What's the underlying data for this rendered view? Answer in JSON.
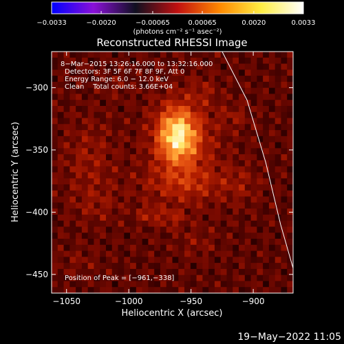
{
  "chart_data": {
    "type": "heatmap",
    "title": "Reconstructed RHESSI Image",
    "xlabel": "Heliocentric X (arcsec)",
    "ylabel": "Heliocentric Y (arcsec)",
    "xlim": [
      -1062,
      -868
    ],
    "ylim": [
      -465,
      -271
    ],
    "xticks": [
      -1050,
      -1000,
      -950,
      -900
    ],
    "yticks": [
      -300,
      -350,
      -400,
      -450
    ],
    "colorbar": {
      "label": "(photons cm⁻² s⁻¹ asec⁻²)",
      "range": [
        -0.0033,
        0.0033
      ],
      "tick_values": [
        -0.0033,
        -0.002,
        -0.00065,
        0.00065,
        0.002,
        0.0033
      ],
      "tick_labels": [
        "−0.0033",
        "−0.0020",
        "−0.00065",
        "0.00065",
        "0.0020",
        "0.0033"
      ],
      "colors": [
        "#0000ff",
        "#8a10d8",
        "#101020",
        "#c01010",
        "#ff8800",
        "#ffee44",
        "#ffffff"
      ]
    },
    "annotations": [
      "8−Mar−2015 13:26:16.000 to 13:32:16.000",
      "Detectors: 3F 5F 6F 7F 8F 9F, Att 0",
      "Energy Range: 6.0 − 12.0 keV",
      "Clean    Total counts: 3.66E+04"
    ],
    "peak_label": "Position of Peak = [−961,−338]",
    "peak": {
      "x": -961,
      "y": -338
    },
    "limb_points": [
      [
        -925,
        -271
      ],
      [
        -905,
        -310
      ],
      [
        -890,
        -360
      ],
      [
        -878,
        -410
      ],
      [
        -868,
        -445
      ]
    ],
    "image_colormap": [
      "#000000",
      "#3a0000",
      "#7a0a00",
      "#b82000",
      "#e45010",
      "#ff9a30",
      "#ffe870",
      "#ffffff"
    ],
    "intensity_sources": [
      {
        "x": -961,
        "y": -338,
        "sx": 11,
        "sy": 15,
        "amp": 0.55
      },
      {
        "x": -955,
        "y": -350,
        "sx": 20,
        "sy": 30,
        "amp": 0.18
      },
      {
        "x": -955,
        "y": -377,
        "sx": 28,
        "sy": 9,
        "amp": 0.12
      },
      {
        "x": -1032,
        "y": -358,
        "sx": 14,
        "sy": 22,
        "amp": 0.12
      },
      {
        "x": -1025,
        "y": -395,
        "sx": 14,
        "sy": 10,
        "amp": 0.08
      },
      {
        "x": -983,
        "y": -402,
        "sx": 7,
        "sy": 5,
        "amp": 0.16
      },
      {
        "x": -965,
        "y": -405,
        "sx": 6,
        "sy": 5,
        "amp": 0.14
      },
      {
        "x": -940,
        "y": -303,
        "sx": 7,
        "sy": 7,
        "amp": 0.09
      },
      {
        "x": -915,
        "y": -323,
        "sx": 9,
        "sy": 7,
        "amp": 0.09
      },
      {
        "x": -1010,
        "y": -300,
        "sx": 8,
        "sy": 6,
        "amp": 0.06
      },
      {
        "x": -910,
        "y": -378,
        "sx": 10,
        "sy": 12,
        "amp": 0.08
      },
      {
        "x": -945,
        "y": -425,
        "sx": 10,
        "sy": 8,
        "amp": 0.07
      },
      {
        "x": -1040,
        "y": -440,
        "sx": 12,
        "sy": 8,
        "amp": 0.06
      }
    ]
  },
  "timestamp": "19−May−2022 11:05"
}
